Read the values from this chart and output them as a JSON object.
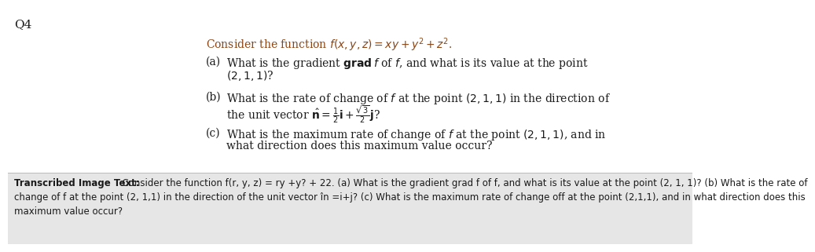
{
  "q_label": "Q4",
  "q_label_color": "#1a1a1a",
  "q_label_fontsize": 11,
  "intro_text": "Consider the function $f(x, y, z) = xy + y^2 + z^2$.",
  "intro_color": "#8B4513",
  "intro_fontsize": 10,
  "part_a_label": "(a)",
  "part_a_line1": "What is the gradient $\\mathbf{grad}\\,f$ of $f$, and what is its value at the point",
  "part_a_line2": "$(2, 1, 1)$?",
  "part_b_label": "(b)",
  "part_b_line1": "What is the rate of change of $f$ at the point $(2, 1, 1)$ in the direction of",
  "part_b_line2": "the unit vector $\\hat{\\mathbf{n}} = \\frac{1}{2}\\mathbf{i} + \\frac{\\sqrt{3}}{2}\\mathbf{j}$?",
  "part_c_label": "(c)",
  "part_c_line1": "What is the maximum rate of change of $f$ at the point $(2, 1, 1)$, and in",
  "part_c_line2": "what direction does this maximum value occur?",
  "parts_fontsize": 10,
  "parts_color": "#1a1a1a",
  "transcribed_bold": "Transcribed Image Text:",
  "transcribed_line1": "  Consider the function f(r, y, z) = ry +y? + 22. (a) What is the gradient grad f of f, and what is its value at the point (2, 1, 1)? (b) What is the rate of",
  "transcribed_line2": "change of f at the point (2, 1,1) in the direction of the unit vector în =i+j? (c) What is the maximum rate of change off at the point (2,1,1), and in what direction does this",
  "transcribed_line3": "maximum value occur?",
  "transcribed_fontsize": 8.5,
  "transcribed_color": "#1a1a1a",
  "bg_color": "#ffffff",
  "lower_bg_color": "#e6e6e6",
  "sep_color": "#bbbbbb"
}
